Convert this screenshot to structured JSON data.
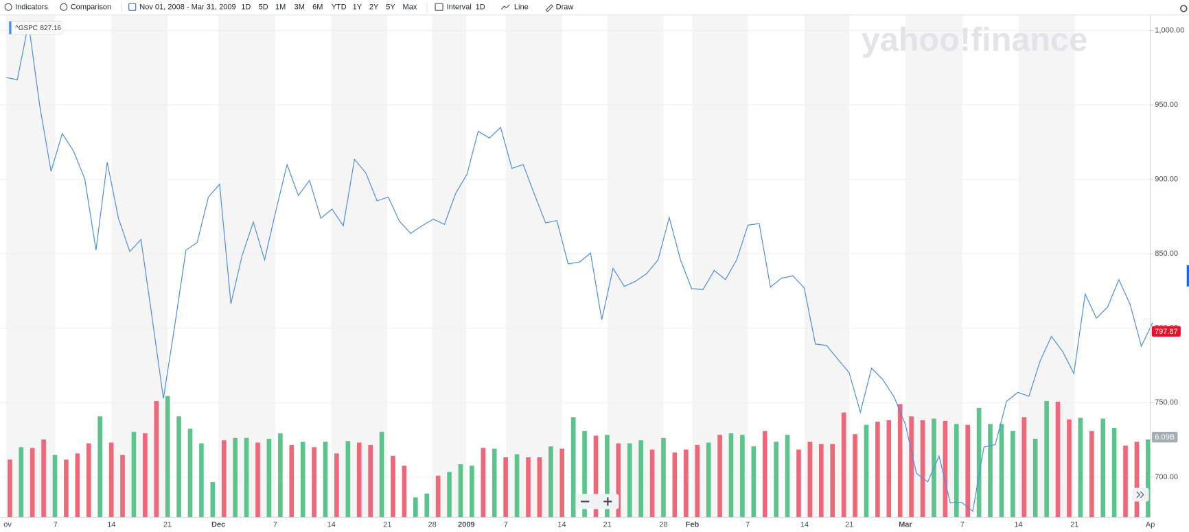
{
  "toolbar": {
    "indicators": "Indicators",
    "comparison": "Comparison",
    "date_range": "Nov 01, 2008 - Mar 31, 2009",
    "ranges": [
      "1D",
      "5D",
      "1M",
      "3M",
      "6M",
      "YTD",
      "1Y",
      "2Y",
      "5Y",
      "Max"
    ],
    "interval_label": "Interval",
    "interval": "1D",
    "chart_type": "Line",
    "draw": "Draw"
  },
  "chart_data": {
    "type": "line",
    "watermark": "yahoo!finance",
    "series": [
      {
        "name": "^GSPC",
        "color": "#4a90e2",
        "values": [
          968.5,
          966.9,
          1005.0,
          949.1,
          905.4,
          930.8,
          919.1,
          900.3,
          852.5,
          911.5,
          873.9,
          851.5,
          859.6,
          806.7,
          752.8,
          801.6,
          852.5,
          857.6,
          888.1,
          896.7,
          816.4,
          848.9,
          871.3,
          845.9,
          878.9,
          910.0,
          889.1,
          899.3,
          873.9,
          880.0,
          868.8,
          913.5,
          904.4,
          885.6,
          888.1,
          871.8,
          863.7,
          868.8,
          873.3,
          869.8,
          890.6,
          903.4,
          932.3,
          927.8,
          934.9,
          907.4,
          910.0,
          890.1,
          870.8,
          872.3,
          843.3,
          844.4,
          850.5,
          805.7,
          840.3,
          828.1,
          831.6,
          836.7,
          845.9,
          874.4,
          845.9,
          826.6,
          826.0,
          838.8,
          832.7,
          845.9,
          869.3,
          870.3,
          827.6,
          833.7,
          835.2,
          827.1,
          789.4,
          788.4,
          779.2,
          770.1,
          743.6,
          773.1,
          765.5,
          753.8,
          735.5,
          702.4,
          696.8,
          714.1,
          682.6,
          683.1,
          677.0,
          720.2,
          721.8,
          750.8,
          756.9,
          754.3,
          778.2,
          794.5,
          784.3,
          769.6,
          823.0,
          806.7,
          814.3,
          832.7,
          815.9,
          787.9,
          803.7
        ]
      }
    ],
    "hover_value": 827.16,
    "last_price": 797.87,
    "last_price_color": "#eb0f29",
    "ylim": [
      672.9,
      1010.2
    ],
    "yticks": [
      {
        "value": 700,
        "label": "700.00"
      },
      {
        "value": 750,
        "label": "750.00"
      },
      {
        "value": 800,
        "label": "800.00"
      },
      {
        "value": 850,
        "label": "850.00"
      },
      {
        "value": 900,
        "label": "900.00"
      },
      {
        "value": 950,
        "label": "950.00"
      },
      {
        "value": 1000,
        "label": "1,000.00"
      }
    ],
    "grid": true,
    "x_labels": [
      "ov",
      "7",
      "14",
      "21",
      "Dec",
      "7",
      "14",
      "21",
      "28",
      "2009",
      "7",
      "14",
      "21",
      "28",
      "Feb",
      "7",
      "14",
      "21",
      "Mar",
      "7",
      "14",
      "21",
      "Ap"
    ],
    "volume": {
      "last_label": "6.09B",
      "values": [
        4.52,
        5.49,
        5.43,
        6.09,
        4.88,
        4.52,
        5.0,
        5.79,
        7.9,
        5.85,
        4.88,
        6.69,
        6.57,
        9.1,
        9.47,
        7.9,
        6.93,
        5.79,
        2.77,
        6.03,
        6.21,
        6.21,
        5.85,
        6.15,
        6.57,
        5.67,
        5.91,
        5.49,
        5.91,
        5.0,
        5.97,
        5.85,
        5.67,
        6.69,
        4.82,
        4.04,
        1.57,
        1.87,
        3.26,
        3.56,
        4.16,
        4.04,
        5.43,
        5.37,
        4.7,
        4.94,
        4.7,
        4.7,
        5.55,
        5.37,
        7.84,
        6.75,
        6.39,
        6.45,
        5.79,
        5.79,
        6.03,
        5.31,
        6.21,
        5.07,
        5.31,
        5.67,
        5.85,
        6.45,
        6.57,
        6.45,
        5.55,
        6.75,
        5.91,
        6.45,
        5.31,
        5.91,
        5.73,
        5.73,
        8.2,
        6.51,
        7.24,
        7.48,
        7.6,
        8.86,
        7.9,
        7.6,
        7.72,
        7.54,
        7.3,
        7.24,
        8.56,
        7.3,
        7.3,
        6.75,
        7.84,
        6.15,
        9.1,
        9.04,
        7.66,
        7.78,
        6.75,
        7.72,
        7.0,
        5.61,
        5.91,
        6.09
      ],
      "colors": [
        "#f0677a",
        "#5bc48c",
        "#f0677a",
        "#f0677a",
        "#5bc48c",
        "#f0677a",
        "#f0677a",
        "#f0677a",
        "#5bc48c",
        "#f0677a",
        "#f0677a",
        "#5bc48c",
        "#f0677a",
        "#f0677a",
        "#5bc48c",
        "#5bc48c",
        "#5bc48c",
        "#5bc48c",
        "#5bc48c",
        "#f0677a",
        "#5bc48c",
        "#5bc48c",
        "#f0677a",
        "#5bc48c",
        "#5bc48c",
        "#f0677a",
        "#5bc48c",
        "#f0677a",
        "#5bc48c",
        "#f0677a",
        "#5bc48c",
        "#f0677a",
        "#f0677a",
        "#5bc48c",
        "#f0677a",
        "#f0677a",
        "#5bc48c",
        "#5bc48c",
        "#f0677a",
        "#5bc48c",
        "#5bc48c",
        "#5bc48c",
        "#f0677a",
        "#5bc48c",
        "#f0677a",
        "#5bc48c",
        "#f0677a",
        "#f0677a",
        "#5bc48c",
        "#f0677a",
        "#5bc48c",
        "#5bc48c",
        "#f0677a",
        "#5bc48c",
        "#f0677a",
        "#5bc48c",
        "#5bc48c",
        "#f0677a",
        "#5bc48c",
        "#f0677a",
        "#f0677a",
        "#f0677a",
        "#5bc48c",
        "#f0677a",
        "#5bc48c",
        "#5bc48c",
        "#5bc48c",
        "#f0677a",
        "#5bc48c",
        "#5bc48c",
        "#f0677a",
        "#f0677a",
        "#f0677a",
        "#f0677a",
        "#f0677a",
        "#f0677a",
        "#5bc48c",
        "#f0677a",
        "#f0677a",
        "#f0677a",
        "#f0677a",
        "#f0677a",
        "#5bc48c",
        "#f0677a",
        "#5bc48c",
        "#f0677a",
        "#5bc48c",
        "#5bc48c",
        "#5bc48c",
        "#5bc48c",
        "#f0677a",
        "#5bc48c",
        "#5bc48c",
        "#f0677a",
        "#f0677a",
        "#5bc48c",
        "#f0677a",
        "#5bc48c",
        "#5bc48c",
        "#f0677a",
        "#f0677a",
        "#5bc48c"
      ]
    }
  }
}
